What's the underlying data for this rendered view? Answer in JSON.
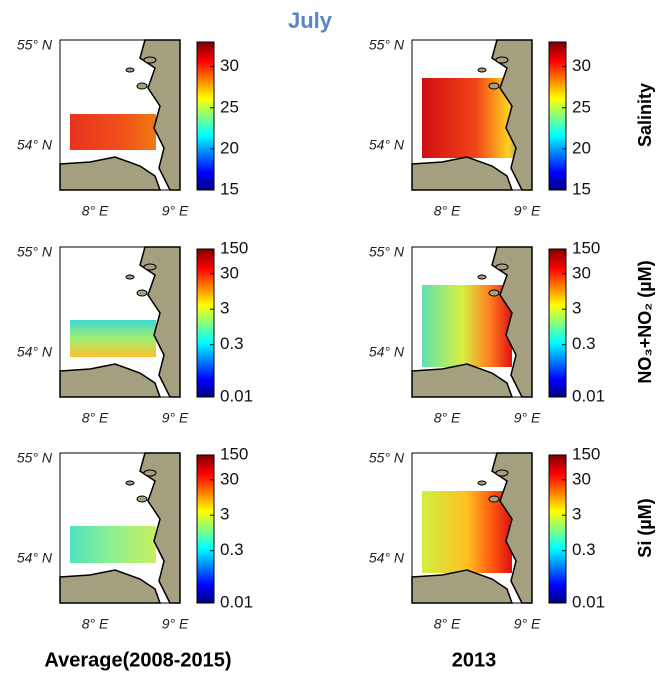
{
  "title": "July",
  "columns": [
    "Average(2008-2015)",
    "2013"
  ],
  "axis_labels": {
    "lat": [
      "55° N",
      "54° N"
    ],
    "lon": [
      "8° E",
      "9° E"
    ]
  },
  "rows": [
    {
      "label": "Salinity",
      "colorbar": {
        "scale": "linear",
        "lim": [
          15,
          33
        ],
        "ticks": [
          15,
          20,
          25,
          30
        ]
      }
    },
    {
      "label": "NO₃+NO₂ (µM)",
      "colorbar": {
        "scale": "log",
        "lim": [
          0.01,
          150
        ],
        "ticks": [
          0.01,
          0.3,
          3,
          30,
          150
        ]
      }
    },
    {
      "label": "Si (µM)",
      "colorbar": {
        "scale": "log",
        "lim": [
          0.01,
          150
        ],
        "ticks": [
          0.01,
          0.3,
          3,
          30,
          150
        ]
      }
    }
  ]
}
